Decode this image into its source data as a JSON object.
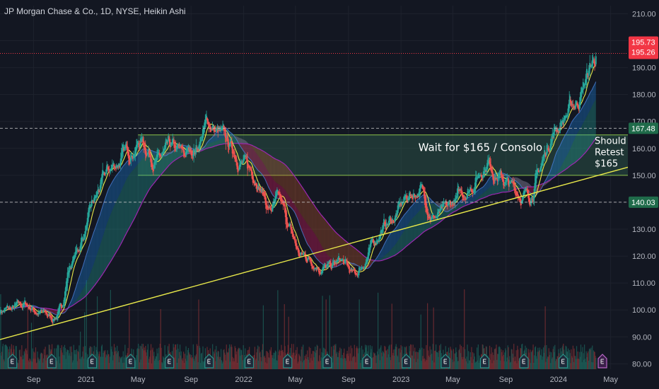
{
  "chart_data": {
    "type": "candlestick",
    "title": "JP Morgan Chase & Co., 1D, NYSE, Heikin Ashi",
    "ylim": [
      78,
      213
    ],
    "y_ticks": [
      80,
      90,
      100,
      110,
      120,
      130,
      140,
      150,
      160,
      170,
      180,
      190,
      200,
      210
    ],
    "y_tick_labels": [
      "80.00",
      "90.00",
      "100.00",
      "110.00",
      "120.00",
      "130.00",
      "140.00",
      "150.00",
      "160.00",
      "170.00",
      "180.00",
      "190.00",
      "200.00",
      "210.00"
    ],
    "x_ticks": [
      "2020-09-01",
      "2021-01-01",
      "2021-05-01",
      "2021-09-01",
      "2022-01-01",
      "2022-05-01",
      "2022-09-01",
      "2023-01-01",
      "2023-05-01",
      "2023-09-01",
      "2024-01-01",
      "2024-05-01"
    ],
    "x_tick_labels": [
      "Sep",
      "2021",
      "May",
      "Sep",
      "2022",
      "May",
      "Sep",
      "2023",
      "May",
      "Sep",
      "2024",
      "May"
    ],
    "x_range": [
      "2020-06-15",
      "2024-06-10"
    ],
    "price_series": {
      "x": [
        "2020-06-15",
        "2020-07-15",
        "2020-08-15",
        "2020-09-15",
        "2020-10-15",
        "2020-11-05",
        "2020-11-20",
        "2020-12-15",
        "2021-01-15",
        "2021-02-15",
        "2021-03-15",
        "2021-04-15",
        "2021-05-10",
        "2021-06-15",
        "2021-07-15",
        "2021-08-15",
        "2021-09-15",
        "2021-10-10",
        "2021-10-25",
        "2021-11-15",
        "2021-12-15",
        "2022-01-10",
        "2022-02-01",
        "2022-03-01",
        "2022-03-25",
        "2022-05-10",
        "2022-05-25",
        "2022-06-15",
        "2022-07-15",
        "2022-08-15",
        "2022-09-15",
        "2022-10-15",
        "2022-11-15",
        "2022-12-15",
        "2023-01-15",
        "2023-02-15",
        "2023-03-15",
        "2023-04-15",
        "2023-05-15",
        "2023-06-15",
        "2023-07-20",
        "2023-08-15",
        "2023-09-15",
        "2023-10-25",
        "2023-11-15",
        "2023-12-15",
        "2024-01-15",
        "2024-02-15",
        "2024-03-15",
        "2024-03-28"
      ],
      "close": [
        100,
        100,
        102,
        99,
        97,
        100,
        115,
        123,
        138,
        150,
        155,
        160,
        163,
        155,
        159,
        157,
        161,
        170,
        167,
        163,
        158,
        152,
        150,
        137,
        140,
        120,
        120,
        118,
        115,
        118,
        112,
        120,
        130,
        134,
        142,
        145,
        135,
        136,
        142,
        147,
        156,
        150,
        145,
        142,
        150,
        165,
        172,
        178,
        190,
        195
      ]
    },
    "current_price_labels": [
      "195.73",
      "195.26"
    ],
    "current_price": 195.26,
    "horizontal_levels": [
      {
        "value": 167.48,
        "label": "167.48",
        "style": "dashed"
      },
      {
        "value": 140.03,
        "label": "140.03",
        "style": "dashed"
      }
    ],
    "zone": {
      "top": 165,
      "bottom": 150
    },
    "trendline": {
      "x": [
        "2020-06-15",
        "2024-06-10"
      ],
      "y": [
        89,
        153
      ]
    },
    "annotations": [
      {
        "text": "Wait for $165 / Consolo",
        "x": "2023-02-10",
        "y": 163
      },
      {
        "lines": [
          "Should",
          "Retest",
          "$165"
        ],
        "x": "2024-03-25",
        "y": 163
      }
    ],
    "colors": {
      "up": "#26a69a",
      "down": "#ef5350",
      "trendline": "#e8e84a",
      "ma_fast": "#e8e84a",
      "ma_slow": "#9c27b0",
      "zone": "#2e5e4e",
      "price_line": "#f23645",
      "background": "#131722"
    }
  }
}
